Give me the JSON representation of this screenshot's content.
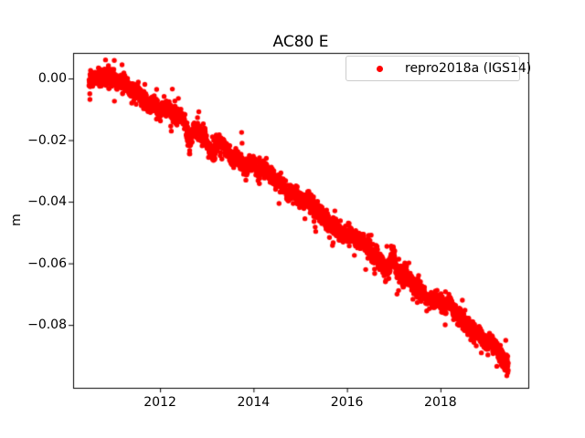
{
  "figure": {
    "title": "AC80 E",
    "ylabel": "m",
    "background": "#ffffff"
  },
  "legend": {
    "label": "repro2018a (IGS14)",
    "marker_color": "#ff0000",
    "position": "upper right"
  },
  "chart_data": {
    "type": "scatter",
    "title": "AC80 E",
    "xlabel": "",
    "ylabel": "m",
    "xlim": [
      2010.14,
      2019.88
    ],
    "ylim": [
      -0.1004,
      0.0083
    ],
    "grid": false,
    "xticks": [
      {
        "value": 2012,
        "label": "2012"
      },
      {
        "value": 2014,
        "label": "2014"
      },
      {
        "value": 2016,
        "label": "2016"
      },
      {
        "value": 2018,
        "label": "2018"
      }
    ],
    "yticks": [
      {
        "value": 0.0,
        "label": "0.00"
      },
      {
        "value": -0.02,
        "label": "−0.02"
      },
      {
        "value": -0.04,
        "label": "−0.04"
      },
      {
        "value": -0.06,
        "label": "−0.06"
      },
      {
        "value": -0.08,
        "label": "−0.08"
      }
    ],
    "series": [
      {
        "name": "repro2018a (IGS14)",
        "color": "#ff0000",
        "marker": "dot",
        "marker_radius_px": 2.7,
        "n_points": 3200,
        "x_start": 2010.48,
        "x_end": 2019.45,
        "trend_anchors": [
          [
            2010.48,
            -0.0005
          ],
          [
            2010.62,
            0.0008
          ],
          [
            2010.8,
            0.0018
          ],
          [
            2010.95,
            0.001
          ],
          [
            2011.1,
            -0.0015
          ],
          [
            2011.3,
            -0.004
          ],
          [
            2011.45,
            -0.0038
          ],
          [
            2011.65,
            -0.006
          ],
          [
            2011.85,
            -0.0085
          ],
          [
            2012.0,
            -0.01
          ],
          [
            2012.25,
            -0.0115
          ],
          [
            2012.5,
            -0.0135
          ],
          [
            2012.75,
            -0.016
          ],
          [
            2013.0,
            -0.019
          ],
          [
            2013.25,
            -0.021
          ],
          [
            2013.5,
            -0.024
          ],
          [
            2013.75,
            -0.0268
          ],
          [
            2014.0,
            -0.0287
          ],
          [
            2014.25,
            -0.031
          ],
          [
            2014.5,
            -0.033
          ],
          [
            2014.75,
            -0.036
          ],
          [
            2015.0,
            -0.039
          ],
          [
            2015.25,
            -0.0418
          ],
          [
            2015.5,
            -0.0452
          ],
          [
            2015.75,
            -0.0478
          ],
          [
            2016.0,
            -0.051
          ],
          [
            2016.25,
            -0.0532
          ],
          [
            2016.5,
            -0.056
          ],
          [
            2016.75,
            -0.0592
          ],
          [
            2017.0,
            -0.0625
          ],
          [
            2017.25,
            -0.065
          ],
          [
            2017.5,
            -0.0675
          ],
          [
            2017.75,
            -0.0705
          ],
          [
            2018.0,
            -0.073
          ],
          [
            2018.25,
            -0.0755
          ],
          [
            2018.5,
            -0.0785
          ],
          [
            2018.75,
            -0.082
          ],
          [
            2019.0,
            -0.0855
          ],
          [
            2019.2,
            -0.0885
          ],
          [
            2019.35,
            -0.0915
          ],
          [
            2019.45,
            -0.094
          ]
        ],
        "noise_std": 0.0013,
        "outlier_frac": 0.06,
        "outlier_std": 0.003,
        "harmonics": [
          {
            "freq": 1.0,
            "amp": 0.0009,
            "phase": 0.2
          },
          {
            "freq": 3.3,
            "amp": 0.0006,
            "phase": 1.0
          },
          {
            "freq": 7.7,
            "amp": 0.0004,
            "phase": 2.3
          }
        ],
        "events": [
          {
            "center": 2012.63,
            "halfwidth": 0.09,
            "peak": -0.0075
          },
          {
            "center": 2013.1,
            "halfwidth": 0.14,
            "peak": -0.0085
          },
          {
            "center": 2016.98,
            "halfwidth": 0.1,
            "peak": 0.006
          }
        ],
        "extra_points": [
          [
            2013.745,
            -0.0175
          ],
          [
            2013.755,
            -0.021
          ],
          [
            2016.4,
            -0.062
          ],
          [
            2017.07,
            -0.07
          ],
          [
            2015.1,
            -0.0455
          ],
          [
            2019.42,
            -0.0965
          ],
          [
            2019.44,
            -0.0955
          ]
        ],
        "seed": 42
      }
    ]
  }
}
